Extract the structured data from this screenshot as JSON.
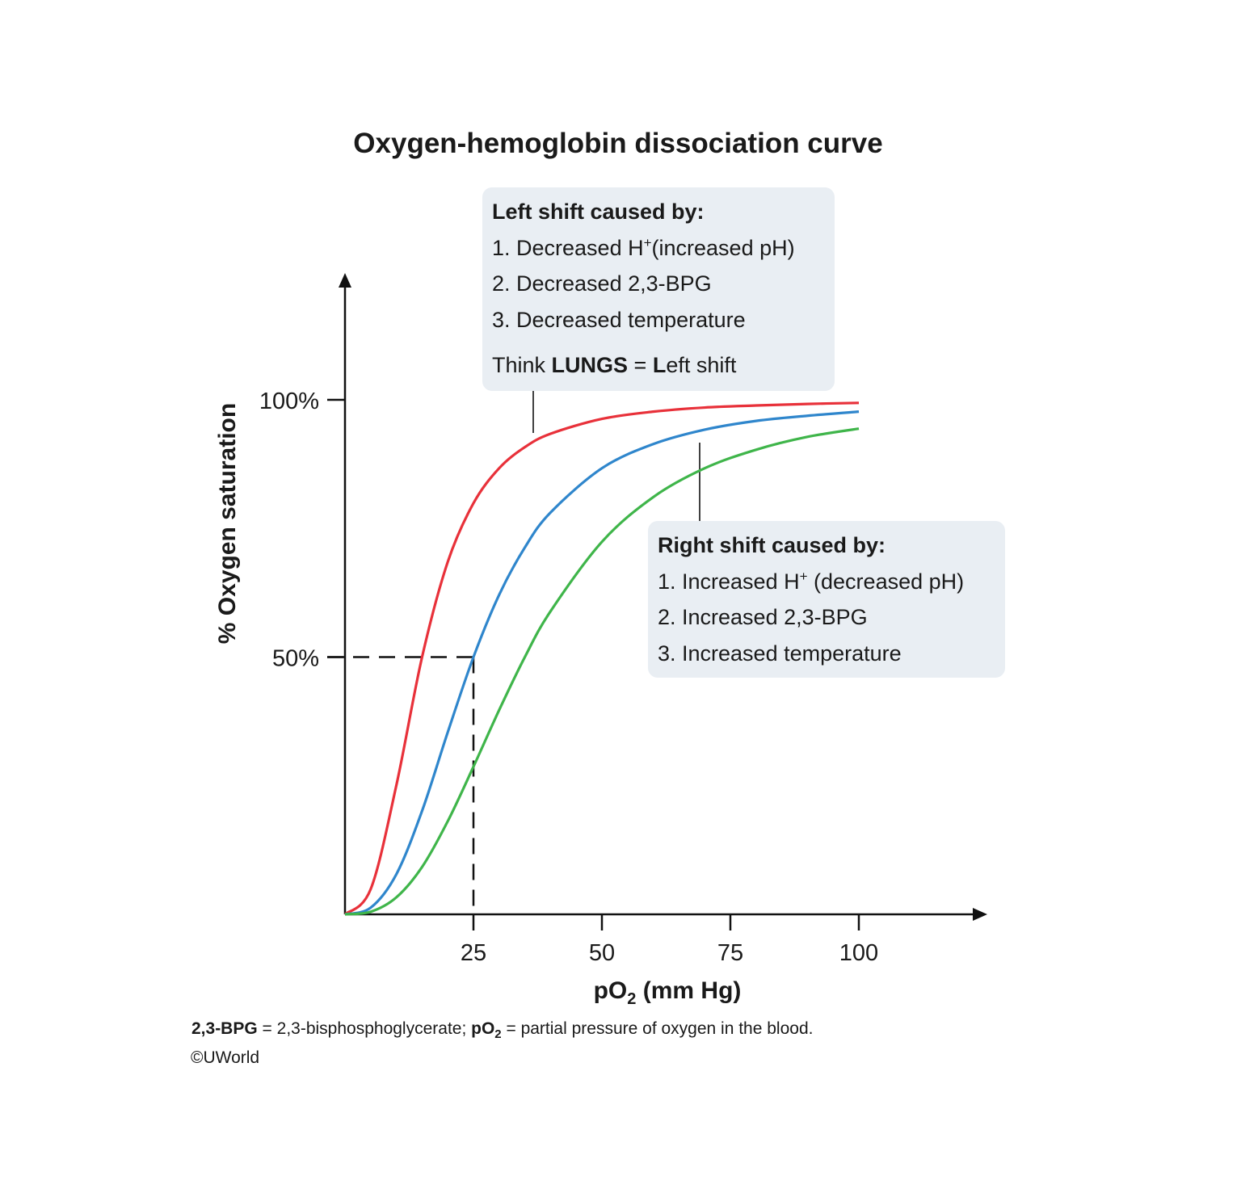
{
  "chart_data": {
    "type": "line",
    "title": "Oxygen-hemoglobin dissociation curve",
    "xlabel_main": "pO",
    "xlabel_sub": "2",
    "xlabel_unit": " (mm Hg)",
    "ylabel": "% Oxygen saturation",
    "xlim": [
      0,
      125
    ],
    "ylim": [
      0,
      100
    ],
    "x_ticks": [
      25,
      50,
      75,
      100
    ],
    "x_tick_labels": [
      "25",
      "50",
      "75",
      "100"
    ],
    "y_ticks": [
      50,
      100
    ],
    "y_tick_labels": [
      "50%",
      "100%"
    ],
    "grid": false,
    "x": [
      0,
      5,
      10,
      15,
      20,
      25,
      30,
      35,
      40,
      50,
      60,
      70,
      80,
      90,
      100
    ],
    "series": [
      {
        "color": "#e8313a",
        "values": [
          0,
          4.9,
          25.1,
          50,
          68.5,
          79.9,
          86.7,
          90.8,
          93.4,
          96.3,
          97.7,
          98.5,
          98.9,
          99.2,
          99.4
        ]
      },
      {
        "color": "#2f86cc",
        "values": [
          0,
          1.3,
          7.8,
          20.1,
          35.4,
          50,
          62.1,
          71.3,
          78.1,
          86.7,
          91.4,
          94.2,
          95.9,
          96.9,
          97.7
        ]
      },
      {
        "color": "#3fb54a",
        "values": [
          0,
          0.5,
          3.3,
          9.2,
          18.1,
          28.7,
          39.7,
          50,
          58.9,
          72.4,
          81.1,
          86.7,
          90.3,
          92.8,
          94.4
        ]
      }
    ],
    "reference_lines": {
      "x": 25,
      "y": 50,
      "style": "dashed"
    },
    "annotations": {
      "left": {
        "heading": "Left shift caused by:",
        "item1_pre": "1. Decreased H",
        "item1_sup": "+",
        "item1_post": "(increased pH)",
        "item2": "2. Decreased 2,3-BPG",
        "item3": "3. Decreased temperature",
        "think_pre": "Think ",
        "think_bold": "LUNGS",
        "think_mid": " = ",
        "think_bold2": "L",
        "think_post": "eft shift"
      },
      "right": {
        "heading": "Right shift caused by:",
        "item1_pre": "1. Increased H",
        "item1_sup": "+",
        "item1_post": " (decreased pH)",
        "item2": "2. Increased 2,3-BPG",
        "item3": "3. Increased temperature"
      }
    }
  },
  "footnote": {
    "term1": "2,3-BPG",
    "def1": " = 2,3-bisphosphoglycerate; ",
    "term2": "pO",
    "term2_sub": "2",
    "def2": " = partial pressure of oxygen in the blood."
  },
  "copyright": "©UWorld"
}
